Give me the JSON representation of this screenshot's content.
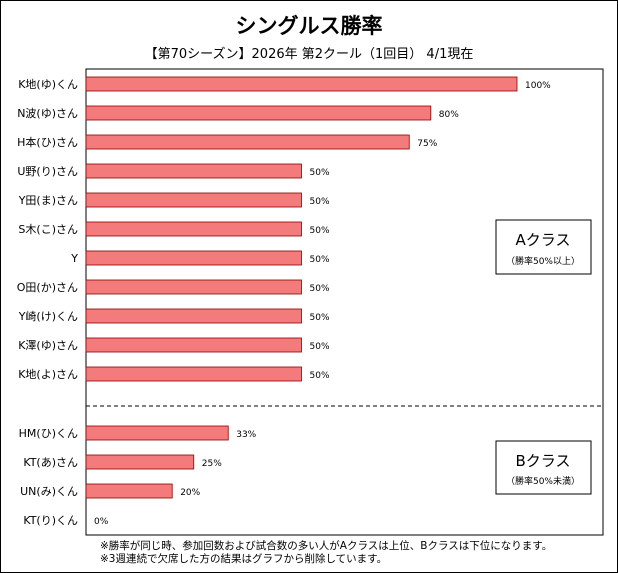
{
  "chart_data": {
    "type": "bar",
    "orientation": "horizontal",
    "title": "シングルス勝率",
    "subtitle": "【第70シーズン】2026年 第2クール（1回目） 4/1現在",
    "xlim": [
      0,
      100
    ],
    "value_suffix": "%",
    "bar_color": "#F47B7B",
    "bar_border_color": "#8B0000",
    "categories": [
      "K地(ゆ)くん",
      "N波(ゆ)さん",
      "H本(ひ)さん",
      "U野(り)さん",
      "Y田(ま)さん",
      "S木(こ)さん",
      "Y",
      "O田(か)さん",
      "Y崎(け)くん",
      "K澤(ゆ)さん",
      "K地(よ)さん",
      "HM(ひ)くん",
      "KT(あ)さん",
      "UN(み)くん",
      "KT(り)くん"
    ],
    "values": [
      100,
      80,
      75,
      50,
      50,
      50,
      50,
      50,
      50,
      50,
      50,
      33,
      25,
      20,
      0
    ],
    "classes": [
      {
        "name": "Aクラス",
        "note": "（勝率50%以上）"
      },
      {
        "name": "Bクラス",
        "note": "（勝率50%未満）"
      }
    ]
  },
  "notes": [
    "※勝率が同じ時、参加回数および試合数の多い人がAクラスは上位、Bクラスは下位になります。",
    "※3週連続で欠席した方の結果はグラフから削除しています。"
  ]
}
